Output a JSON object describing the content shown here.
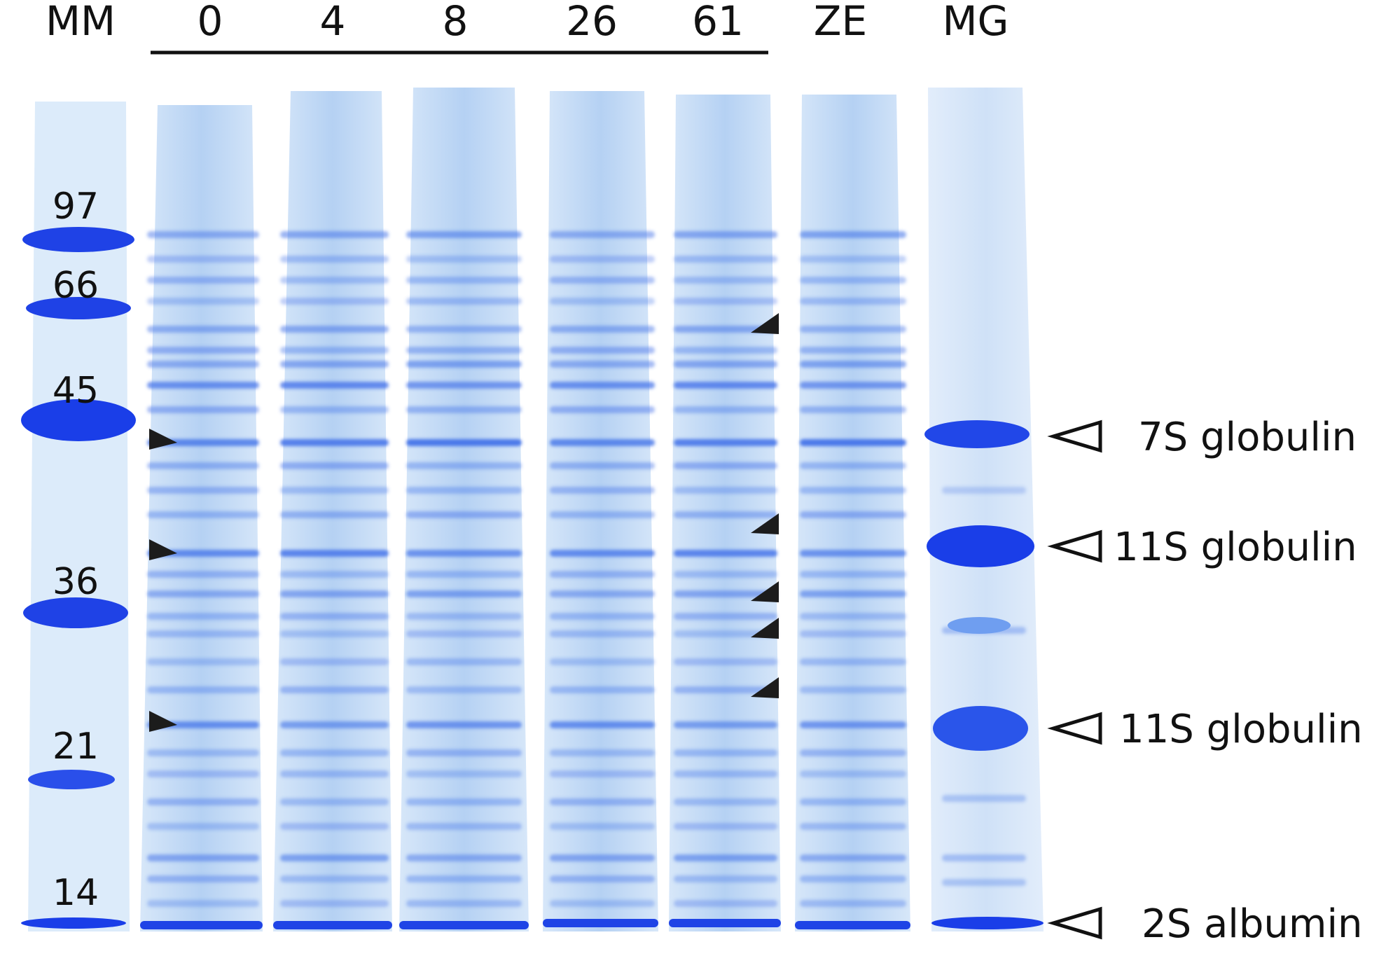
{
  "lane_labels": [
    "MM",
    "0",
    "4",
    "8",
    "26",
    "61",
    "ZE",
    "MG"
  ],
  "molecular_weight_markers": [
    "97",
    "66",
    "45",
    "36",
    "21",
    "14"
  ],
  "protein_annotations": [
    {
      "label": "7S globulin"
    },
    {
      "label": "11S globulin"
    },
    {
      "label": "11S globulin"
    },
    {
      "label": "2S albumin"
    }
  ],
  "colors": {
    "gel_background": "#ffffff",
    "stain_light": "#cfe3f8",
    "stain_mid": "#7fb0ee",
    "stain_dark": "#1a3ee8",
    "marker_solid": "#1c1c1c"
  }
}
